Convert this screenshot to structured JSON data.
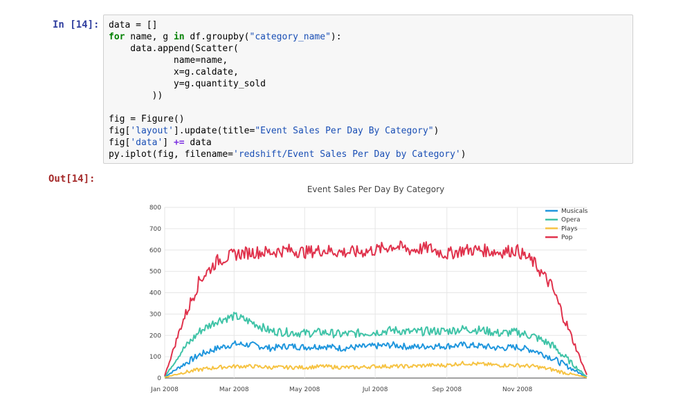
{
  "cell_in": {
    "prompt": "In [14]:",
    "lines": [
      [
        {
          "t": "data = []"
        }
      ],
      [
        {
          "t": "for",
          "c": "kw"
        },
        {
          "t": " name, g "
        },
        {
          "t": "in",
          "c": "kw"
        },
        {
          "t": " df.groupby("
        },
        {
          "t": "\"category_name\"",
          "c": "str"
        },
        {
          "t": "):"
        }
      ],
      [
        {
          "t": "    data.append(Scatter("
        }
      ],
      [
        {
          "t": "            name=name,"
        }
      ],
      [
        {
          "t": "            x=g.caldate,"
        }
      ],
      [
        {
          "t": "            y=g.quantity_sold"
        }
      ],
      [
        {
          "t": "        ))"
        }
      ],
      [
        {
          "t": ""
        }
      ],
      [
        {
          "t": "fig = Figure()"
        }
      ],
      [
        {
          "t": "fig["
        },
        {
          "t": "'layout'",
          "c": "str"
        },
        {
          "t": "].update(title="
        },
        {
          "t": "\"Event Sales Per Day By Category\"",
          "c": "str"
        },
        {
          "t": ")"
        }
      ],
      [
        {
          "t": "fig["
        },
        {
          "t": "'data'",
          "c": "str"
        },
        {
          "t": "] "
        },
        {
          "t": "+=",
          "c": "op"
        },
        {
          "t": " data"
        }
      ],
      [
        {
          "t": "py.iplot(fig, filename="
        },
        {
          "t": "'redshift/Event Sales Per Day by Category'",
          "c": "str"
        },
        {
          "t": ")"
        }
      ]
    ]
  },
  "cell_out": {
    "prompt": "Out[14]:"
  },
  "chart_data": {
    "type": "line",
    "title": "Event Sales Per Day By Category",
    "xlabel": "",
    "ylabel": "",
    "x_ticks": [
      "Jan 2008",
      "Mar 2008",
      "May 2008",
      "Jul 2008",
      "Sep 2008",
      "Nov 2008"
    ],
    "x_range": [
      "2008-01-01",
      "2008-12-31"
    ],
    "ylim": [
      0,
      800
    ],
    "y_ticks": [
      0,
      100,
      200,
      300,
      400,
      500,
      600,
      700,
      800
    ],
    "grid": true,
    "legend_position": "top-right",
    "x": [
      "2008-01-01",
      "2008-01-15",
      "2008-02-01",
      "2008-02-15",
      "2008-03-01",
      "2008-03-15",
      "2008-04-01",
      "2008-04-15",
      "2008-05-01",
      "2008-05-15",
      "2008-06-01",
      "2008-06-15",
      "2008-07-01",
      "2008-07-15",
      "2008-08-01",
      "2008-08-15",
      "2008-09-01",
      "2008-09-15",
      "2008-10-01",
      "2008-10-15",
      "2008-11-01",
      "2008-11-15",
      "2008-12-01",
      "2008-12-15",
      "2008-12-31"
    ],
    "series": [
      {
        "name": "Musicals",
        "color": "#1f96dd",
        "values": [
          5,
          60,
          110,
          140,
          160,
          155,
          140,
          150,
          145,
          150,
          140,
          145,
          150,
          155,
          145,
          150,
          150,
          155,
          150,
          140,
          145,
          130,
          95,
          50,
          5
        ]
      },
      {
        "name": "Opera",
        "color": "#3fc3a7",
        "values": [
          5,
          130,
          220,
          270,
          290,
          260,
          220,
          215,
          210,
          215,
          205,
          210,
          215,
          225,
          215,
          220,
          220,
          230,
          225,
          210,
          215,
          195,
          155,
          80,
          5
        ]
      },
      {
        "name": "Plays",
        "color": "#f6c343",
        "values": [
          3,
          25,
          40,
          50,
          55,
          55,
          50,
          50,
          50,
          55,
          50,
          50,
          55,
          55,
          55,
          60,
          60,
          70,
          65,
          60,
          60,
          55,
          40,
          20,
          3
        ]
      },
      {
        "name": "Pop",
        "color": "#e0324c",
        "values": [
          10,
          260,
          460,
          550,
          580,
          590,
          590,
          600,
          590,
          600,
          590,
          590,
          600,
          620,
          600,
          610,
          580,
          600,
          600,
          590,
          600,
          540,
          430,
          220,
          15
        ]
      }
    ]
  }
}
